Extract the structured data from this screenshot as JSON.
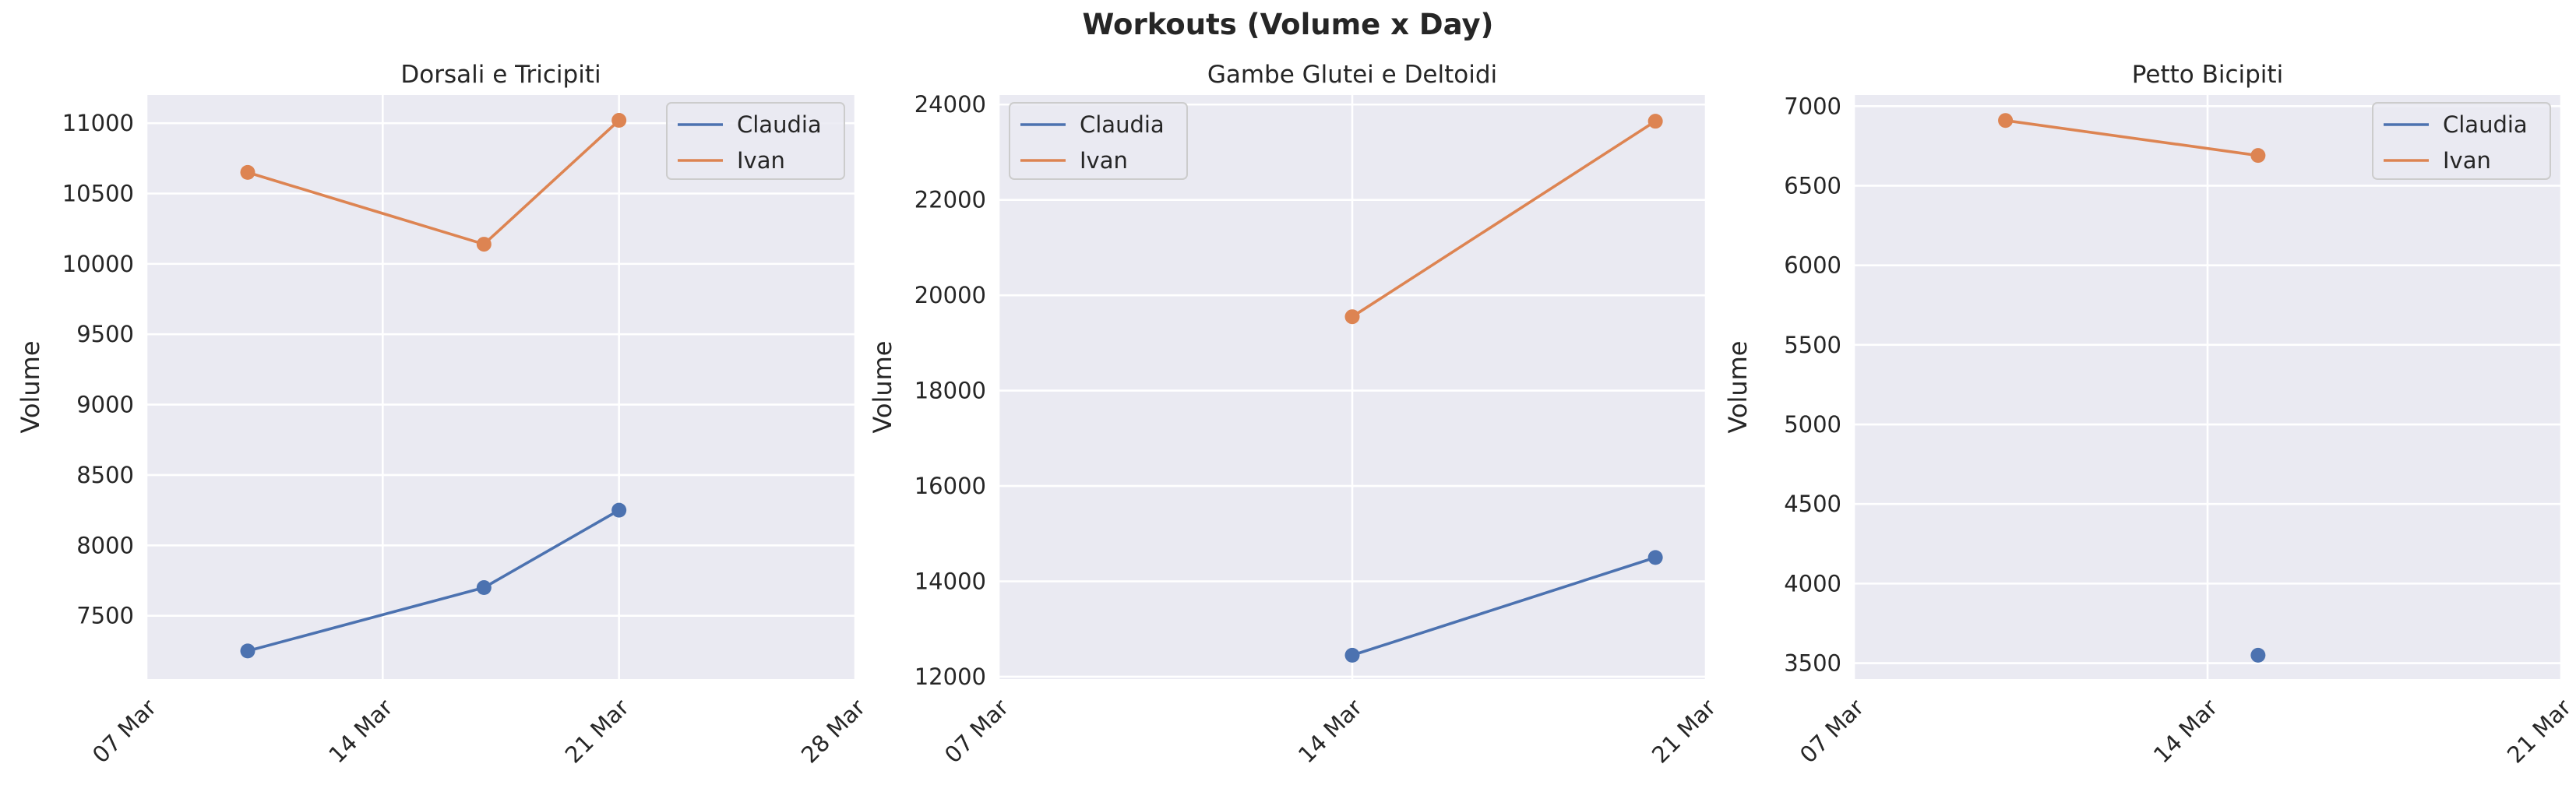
{
  "figure": {
    "suptitle": "Workouts (Volume x Day)"
  },
  "colors": {
    "background": "#eaeaf2",
    "grid": "#ffffff",
    "text": "#262626",
    "Claudia": "#4c72b0",
    "Ivan": "#dd8452"
  },
  "chart_data": [
    {
      "type": "line",
      "title": "Dorsali e Tricipiti",
      "xlabel": "",
      "ylabel": "Volume",
      "x_type": "date",
      "xlim": [
        "2024-03-07",
        "2024-03-28"
      ],
      "x_ticks": [
        {
          "date": "2024-03-07",
          "label": "07 Mar"
        },
        {
          "date": "2024-03-14",
          "label": "14 Mar"
        },
        {
          "date": "2024-03-21",
          "label": "21 Mar"
        },
        {
          "date": "2024-03-28",
          "label": "28 Mar"
        }
      ],
      "ylim": [
        7050,
        11200
      ],
      "y_ticks": [
        7500,
        8000,
        8500,
        9000,
        9500,
        10000,
        10500,
        11000
      ],
      "grid": true,
      "legend_position": "top-right",
      "series": [
        {
          "name": "Claudia",
          "x": [
            "2024-03-10",
            "2024-03-17",
            "2024-03-21"
          ],
          "y": [
            7250,
            7700,
            8250
          ]
        },
        {
          "name": "Ivan",
          "x": [
            "2024-03-10",
            "2024-03-17",
            "2024-03-21"
          ],
          "y": [
            10650,
            10140,
            11020
          ]
        }
      ]
    },
    {
      "type": "line",
      "title": "Gambe Glutei e Deltoidi",
      "xlabel": "",
      "ylabel": "Volume",
      "x_type": "date",
      "xlim": [
        "2024-03-07",
        "2024-03-21"
      ],
      "x_ticks": [
        {
          "date": "2024-03-07",
          "label": "07 Mar"
        },
        {
          "date": "2024-03-14",
          "label": "14 Mar"
        },
        {
          "date": "2024-03-21",
          "label": "21 Mar"
        }
      ],
      "ylim": [
        11950,
        24200
      ],
      "y_ticks": [
        12000,
        14000,
        16000,
        18000,
        20000,
        22000,
        24000
      ],
      "grid": true,
      "legend_position": "top-left",
      "series": [
        {
          "name": "Claudia",
          "x": [
            "2024-03-14",
            "2024-03-20"
          ],
          "y": [
            12450,
            14500
          ]
        },
        {
          "name": "Ivan",
          "x": [
            "2024-03-14",
            "2024-03-20"
          ],
          "y": [
            19550,
            23650
          ]
        }
      ]
    },
    {
      "type": "line",
      "title": "Petto Bicipiti",
      "xlabel": "",
      "ylabel": "Volume",
      "x_type": "date",
      "xlim": [
        "2024-03-07",
        "2024-03-21"
      ],
      "x_ticks": [
        {
          "date": "2024-03-07",
          "label": "07 Mar"
        },
        {
          "date": "2024-03-14",
          "label": "14 Mar"
        },
        {
          "date": "2024-03-21",
          "label": "21 Mar"
        }
      ],
      "ylim": [
        3400,
        7070
      ],
      "y_ticks": [
        3500,
        4000,
        4500,
        5000,
        5500,
        6000,
        6500,
        7000
      ],
      "grid": true,
      "legend_position": "top-right",
      "series": [
        {
          "name": "Claudia",
          "x": [
            "2024-03-15"
          ],
          "y": [
            3550
          ]
        },
        {
          "name": "Ivan",
          "x": [
            "2024-03-10",
            "2024-03-15"
          ],
          "y": [
            6910,
            6690
          ]
        }
      ]
    }
  ]
}
